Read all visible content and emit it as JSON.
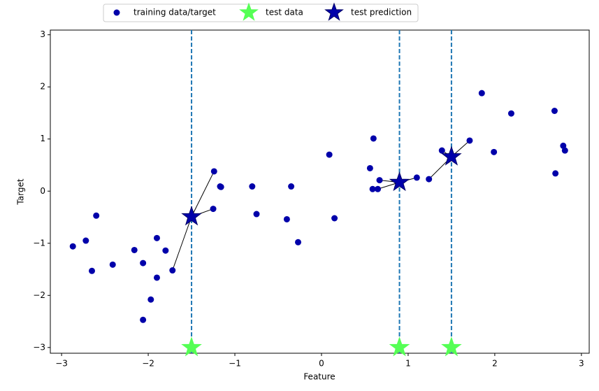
{
  "chart_data": {
    "type": "scatter",
    "xlabel": "Feature",
    "ylabel": "Target",
    "xlim": [
      -3.13,
      3.09
    ],
    "ylim": [
      -3.11,
      3.09
    ],
    "xticks": [
      {
        "value": -3,
        "label": "−3"
      },
      {
        "value": -2,
        "label": "−2"
      },
      {
        "value": -1,
        "label": "−1"
      },
      0,
      1,
      2,
      3
    ],
    "yticks": [
      {
        "value": -3,
        "label": "−3"
      },
      {
        "value": -2,
        "label": "−2"
      },
      {
        "value": -1,
        "label": "−1"
      },
      0,
      1,
      2,
      3
    ],
    "vlines_color": "#1f77b4",
    "legend": "upper center outside",
    "series": [
      {
        "name": "training data/target",
        "color": "#0000aa",
        "marker": "circle",
        "x": [
          -2.87,
          -2.72,
          -2.65,
          -2.6,
          -2.41,
          -2.16,
          -2.06,
          -2.06,
          -1.97,
          -1.9,
          -1.9,
          -1.8,
          -1.72,
          -1.24,
          -1.25,
          -1.17,
          -1.16,
          -0.8,
          -0.75,
          -0.4,
          -0.35,
          -0.27,
          0.09,
          0.15,
          0.56,
          0.6,
          0.59,
          0.65,
          0.67,
          1.1,
          1.24,
          1.39,
          1.71,
          1.85,
          1.99,
          2.19,
          2.69,
          2.7,
          2.79,
          2.81
        ],
        "values": [
          -1.06,
          -0.95,
          -1.53,
          -0.47,
          -1.41,
          -1.13,
          -1.38,
          -2.47,
          -2.08,
          -1.66,
          -0.9,
          -1.14,
          -1.52,
          0.38,
          -0.34,
          0.09,
          0.08,
          0.09,
          -0.44,
          -0.54,
          0.09,
          -0.98,
          0.7,
          -0.52,
          0.44,
          1.01,
          0.04,
          0.04,
          0.21,
          0.26,
          0.23,
          0.78,
          0.97,
          1.88,
          0.75,
          1.49,
          1.54,
          0.34,
          0.87,
          0.78
        ]
      },
      {
        "name": "test data",
        "color": "#55ff55",
        "marker": "star",
        "x": [
          -1.5,
          0.9,
          1.5
        ],
        "values": [
          -3,
          -3,
          -3
        ]
      },
      {
        "name": "test prediction",
        "color": "#0000aa",
        "marker": "star",
        "x": [
          -1.5,
          0.9,
          1.5
        ],
        "values": [
          -0.49,
          0.17,
          0.66
        ]
      }
    ]
  }
}
